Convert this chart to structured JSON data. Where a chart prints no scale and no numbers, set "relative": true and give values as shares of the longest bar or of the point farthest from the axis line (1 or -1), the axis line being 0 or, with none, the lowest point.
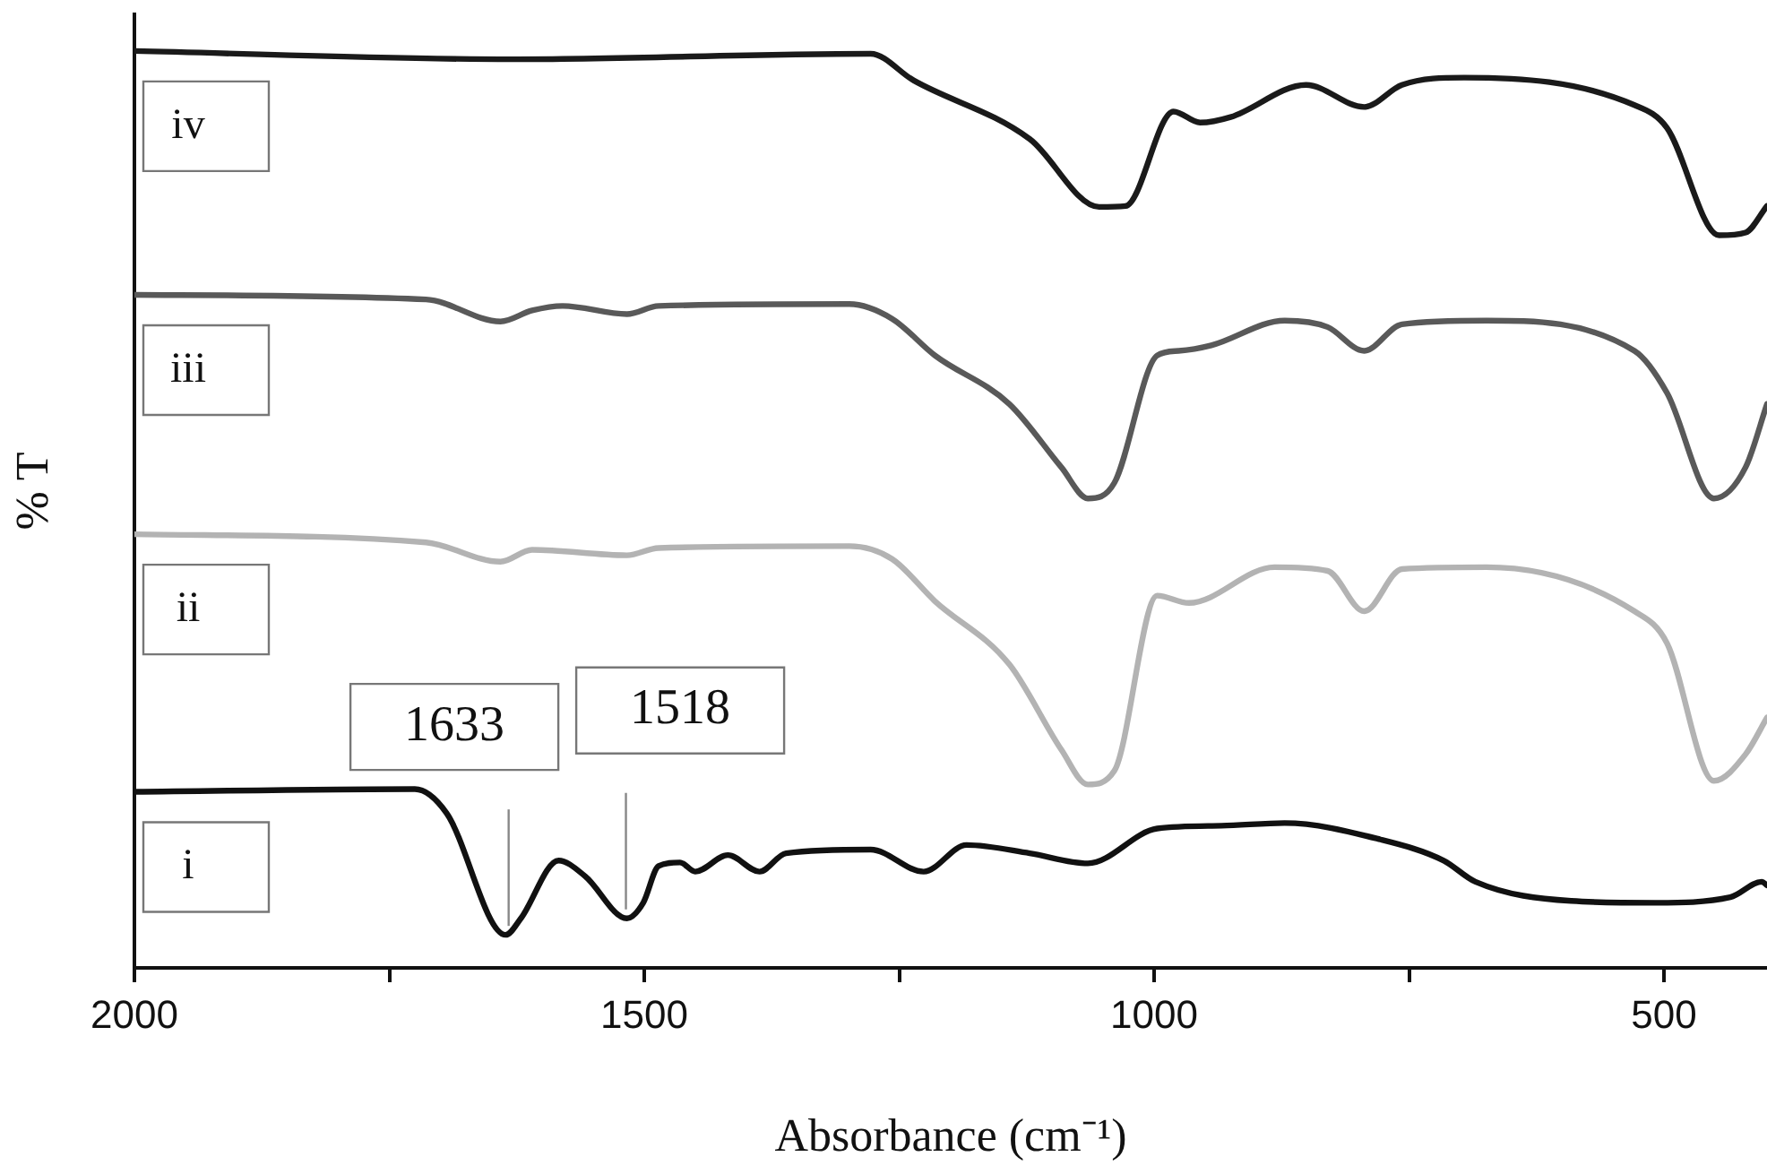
{
  "chart_data": {
    "type": "line",
    "relative": true,
    "xlabel": "Absorbance (cm⁻¹)",
    "ylabel": "% T",
    "xlim": [
      2000,
      399
    ],
    "xticks": [
      2000,
      {
        "value": 1750,
        "label": null
      },
      1500,
      {
        "value": 1250,
        "label": null
      },
      1000,
      {
        "value": 750,
        "label": null
      },
      500
    ],
    "grid": false,
    "legend": false,
    "marker": "none",
    "line_style": "solid",
    "annotations": [
      {
        "text": "1633",
        "x": 1633,
        "y": 0.036
      },
      {
        "text": "1518",
        "x": 1518,
        "y": 0.054
      }
    ],
    "series": [
      {
        "name": "iv",
        "color": "#1a1a1a",
        "x": [
          2000,
          1631,
          1278,
          1236,
          1122,
          1054,
          1028,
          981,
          955,
          925,
          851,
          794,
          757,
          696,
          529,
          497,
          446,
          420,
          399
        ],
        "values": [
          1.0,
          0.991,
          0.997,
          0.968,
          0.904,
          0.83,
          0.831,
          0.934,
          0.922,
          0.928,
          0.963,
          0.939,
          0.963,
          0.971,
          0.941,
          0.916,
          0.799,
          0.802,
          0.831
        ]
      },
      {
        "name": "iii",
        "color": "#595959",
        "x": [
          2000,
          1714,
          1641,
          1610,
          1580,
          1517,
          1486,
          1299,
          1257,
          1215,
          1142,
          1091,
          1065,
          1039,
          997,
          976,
          944,
          872,
          830,
          794,
          757,
          674,
          529,
          497,
          451,
          420,
          399
        ],
        "values": [
          0.734,
          0.729,
          0.705,
          0.717,
          0.722,
          0.713,
          0.722,
          0.724,
          0.708,
          0.668,
          0.615,
          0.546,
          0.512,
          0.529,
          0.668,
          0.673,
          0.679,
          0.706,
          0.699,
          0.673,
          0.702,
          0.706,
          0.673,
          0.627,
          0.512,
          0.546,
          0.615
        ]
      },
      {
        "name": "ii",
        "color": "#b3b3b3",
        "x": [
          2000,
          1714,
          1641,
          1610,
          1517,
          1486,
          1299,
          1257,
          1215,
          1142,
          1091,
          1065,
          1039,
          997,
          966,
          882,
          830,
          794,
          757,
          674,
          529,
          497,
          451,
          420,
          399
        ],
        "values": [
          0.473,
          0.464,
          0.443,
          0.456,
          0.45,
          0.458,
          0.46,
          0.446,
          0.4,
          0.331,
          0.238,
          0.2,
          0.215,
          0.406,
          0.398,
          0.437,
          0.433,
          0.389,
          0.435,
          0.437,
          0.389,
          0.354,
          0.204,
          0.233,
          0.273
        ]
      },
      {
        "name": "i",
        "color": "#111111",
        "x": [
          2000,
          1725,
          1694,
          1636,
          1621,
          1584,
          1558,
          1517,
          1501,
          1486,
          1465,
          1450,
          1418,
          1387,
          1361,
          1278,
          1226,
          1184,
          1122,
          1065,
          997,
          934,
          872,
          778,
          716,
          685,
          591,
          508,
          435,
          404,
          399
        ],
        "values": [
          0.192,
          0.195,
          0.169,
          0.036,
          0.054,
          0.117,
          0.1,
          0.054,
          0.071,
          0.111,
          0.115,
          0.105,
          0.123,
          0.105,
          0.125,
          0.129,
          0.105,
          0.134,
          0.125,
          0.114,
          0.152,
          0.155,
          0.158,
          0.14,
          0.117,
          0.094,
          0.073,
          0.071,
          0.077,
          0.094,
          0.09
        ]
      }
    ]
  }
}
